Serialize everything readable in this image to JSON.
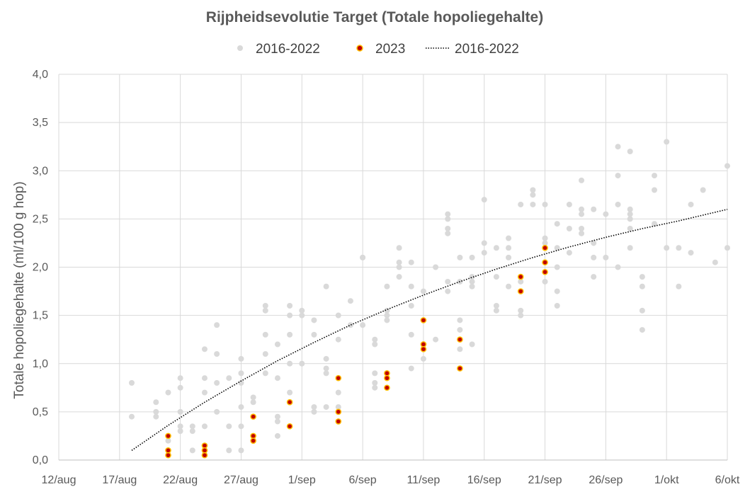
{
  "chart_data": {
    "type": "scatter",
    "title": "Rijpheidsevolutie Target (Totale hopoliegehalte)",
    "xlabel": "",
    "ylabel": "Totale hopoliegehalte (ml/100 g hop)",
    "x_unit": "day of year (Aug/Sep/Oct)",
    "x_tick_labels": [
      "12/aug",
      "17/aug",
      "22/aug",
      "27/aug",
      "1/sep",
      "6/sep",
      "11/sep",
      "16/sep",
      "21/sep",
      "26/sep",
      "1/okt",
      "6/okt"
    ],
    "x_ticks": [
      224,
      229,
      234,
      239,
      244,
      249,
      254,
      259,
      264,
      269,
      274,
      279
    ],
    "xlim": [
      224,
      279
    ],
    "ylim": [
      0,
      4
    ],
    "y_ticks": [
      "0,0",
      "0,5",
      "1,0",
      "1,5",
      "2,0",
      "2,5",
      "3,0",
      "3,5",
      "4,0"
    ],
    "y_tick_values": [
      0,
      0.5,
      1.0,
      1.5,
      2.0,
      2.5,
      3.0,
      3.5,
      4.0
    ],
    "grid": true,
    "legend_position": "top",
    "legend": [
      "2016-2022",
      "2023",
      "2016-2022"
    ],
    "colors": {
      "historic": "#d9d9d9",
      "current_fill": "#c00000",
      "current_edge": "#ffc000",
      "trend": "#000000",
      "grid": "#d9d9d9"
    },
    "series": [
      {
        "name": "2016-2022",
        "kind": "scatter",
        "points": [
          [
            230,
            0.8
          ],
          [
            230,
            0.45
          ],
          [
            232,
            0.6
          ],
          [
            232,
            0.5
          ],
          [
            232,
            0.45
          ],
          [
            233,
            0.7
          ],
          [
            233,
            0.2
          ],
          [
            234,
            0.85
          ],
          [
            234,
            0.75
          ],
          [
            234,
            0.5
          ],
          [
            234,
            0.35
          ],
          [
            234,
            0.3
          ],
          [
            235,
            0.1
          ],
          [
            235,
            0.35
          ],
          [
            235,
            0.3
          ],
          [
            236,
            1.15
          ],
          [
            236,
            0.85
          ],
          [
            236,
            0.7
          ],
          [
            236,
            0.35
          ],
          [
            237,
            1.4
          ],
          [
            237,
            1.1
          ],
          [
            237,
            0.8
          ],
          [
            237,
            0.5
          ],
          [
            238,
            0.85
          ],
          [
            238,
            0.35
          ],
          [
            238,
            0.1
          ],
          [
            239,
            1.05
          ],
          [
            239,
            0.9
          ],
          [
            239,
            0.8
          ],
          [
            239,
            0.55
          ],
          [
            239,
            0.35
          ],
          [
            239,
            0.1
          ],
          [
            240,
            0.65
          ],
          [
            240,
            0.6
          ],
          [
            241,
            1.6
          ],
          [
            241,
            1.55
          ],
          [
            241,
            1.3
          ],
          [
            241,
            1.1
          ],
          [
            241,
            0.9
          ],
          [
            242,
            1.2
          ],
          [
            242,
            0.85
          ],
          [
            242,
            0.45
          ],
          [
            242,
            0.4
          ],
          [
            242,
            0.25
          ],
          [
            243,
            1.6
          ],
          [
            243,
            1.5
          ],
          [
            243,
            1.3
          ],
          [
            243,
            1.0
          ],
          [
            243,
            0.7
          ],
          [
            244,
            1.55
          ],
          [
            244,
            1.5
          ],
          [
            244,
            1.0
          ],
          [
            245,
            1.45
          ],
          [
            245,
            1.3
          ],
          [
            245,
            0.55
          ],
          [
            245,
            0.5
          ],
          [
            246,
            1.8
          ],
          [
            246,
            1.05
          ],
          [
            246,
            0.95
          ],
          [
            246,
            0.9
          ],
          [
            246,
            0.55
          ],
          [
            247,
            1.5
          ],
          [
            247,
            1.25
          ],
          [
            247,
            0.7
          ],
          [
            247,
            0.55
          ],
          [
            248,
            1.65
          ],
          [
            248,
            1.4
          ],
          [
            249,
            2.1
          ],
          [
            249,
            2.1
          ],
          [
            249,
            1.4
          ],
          [
            250,
            1.25
          ],
          [
            250,
            1.2
          ],
          [
            250,
            0.9
          ],
          [
            250,
            0.8
          ],
          [
            250,
            0.75
          ],
          [
            251,
            1.8
          ],
          [
            251,
            1.55
          ],
          [
            251,
            1.5
          ],
          [
            251,
            1.45
          ],
          [
            252,
            2.2
          ],
          [
            252,
            2.05
          ],
          [
            252,
            2.0
          ],
          [
            252,
            1.9
          ],
          [
            253,
            2.05
          ],
          [
            253,
            1.8
          ],
          [
            253,
            1.6
          ],
          [
            253,
            1.3
          ],
          [
            253,
            0.95
          ],
          [
            254,
            1.75
          ],
          [
            254,
            1.05
          ],
          [
            255,
            2.0
          ],
          [
            255,
            1.25
          ],
          [
            256,
            2.55
          ],
          [
            256,
            2.5
          ],
          [
            256,
            2.4
          ],
          [
            256,
            2.35
          ],
          [
            256,
            1.85
          ],
          [
            256,
            1.75
          ],
          [
            257,
            2.1
          ],
          [
            257,
            1.85
          ],
          [
            257,
            1.45
          ],
          [
            257,
            1.35
          ],
          [
            257,
            1.15
          ],
          [
            258,
            2.1
          ],
          [
            258,
            1.9
          ],
          [
            258,
            1.85
          ],
          [
            258,
            1.8
          ],
          [
            258,
            1.2
          ],
          [
            259,
            2.7
          ],
          [
            259,
            2.25
          ],
          [
            259,
            2.15
          ],
          [
            260,
            2.2
          ],
          [
            260,
            1.9
          ],
          [
            260,
            1.6
          ],
          [
            260,
            1.55
          ],
          [
            261,
            2.3
          ],
          [
            261,
            2.2
          ],
          [
            261,
            2.1
          ],
          [
            261,
            1.8
          ],
          [
            262,
            2.65
          ],
          [
            262,
            1.9
          ],
          [
            262,
            1.85
          ],
          [
            262,
            1.55
          ],
          [
            262,
            1.5
          ],
          [
            263,
            2.8
          ],
          [
            263,
            2.75
          ],
          [
            263,
            2.65
          ],
          [
            264,
            2.65
          ],
          [
            264,
            2.3
          ],
          [
            264,
            2.25
          ],
          [
            264,
            1.85
          ],
          [
            265,
            2.45
          ],
          [
            265,
            2.2
          ],
          [
            265,
            2.0
          ],
          [
            265,
            1.75
          ],
          [
            265,
            1.6
          ],
          [
            266,
            2.65
          ],
          [
            266,
            2.4
          ],
          [
            266,
            2.15
          ],
          [
            267,
            2.9
          ],
          [
            267,
            2.6
          ],
          [
            267,
            2.55
          ],
          [
            267,
            2.4
          ],
          [
            267,
            2.35
          ],
          [
            268,
            2.6
          ],
          [
            268,
            2.25
          ],
          [
            268,
            2.1
          ],
          [
            268,
            1.9
          ],
          [
            269,
            2.55
          ],
          [
            269,
            2.1
          ],
          [
            270,
            3.25
          ],
          [
            270,
            2.95
          ],
          [
            270,
            2.65
          ],
          [
            270,
            2.0
          ],
          [
            271,
            3.2
          ],
          [
            271,
            2.6
          ],
          [
            271,
            2.55
          ],
          [
            271,
            2.5
          ],
          [
            271,
            2.4
          ],
          [
            271,
            2.2
          ],
          [
            272,
            1.9
          ],
          [
            272,
            1.8
          ],
          [
            272,
            1.55
          ],
          [
            272,
            1.35
          ],
          [
            273,
            2.95
          ],
          [
            273,
            2.8
          ],
          [
            273,
            2.45
          ],
          [
            274,
            3.3
          ],
          [
            274,
            2.2
          ],
          [
            275,
            2.2
          ],
          [
            275,
            1.8
          ],
          [
            276,
            2.65
          ],
          [
            276,
            2.15
          ],
          [
            277,
            2.8
          ],
          [
            278,
            2.05
          ],
          [
            279,
            3.05
          ],
          [
            279,
            2.2
          ]
        ]
      },
      {
        "name": "2023",
        "kind": "scatter",
        "points": [
          [
            233,
            0.25
          ],
          [
            233,
            0.1
          ],
          [
            233,
            0.05
          ],
          [
            236,
            0.15
          ],
          [
            236,
            0.1
          ],
          [
            236,
            0.05
          ],
          [
            240,
            0.45
          ],
          [
            240,
            0.25
          ],
          [
            240,
            0.2
          ],
          [
            243,
            0.6
          ],
          [
            243,
            0.35
          ],
          [
            247,
            0.85
          ],
          [
            247,
            0.5
          ],
          [
            247,
            0.4
          ],
          [
            251,
            0.9
          ],
          [
            251,
            0.85
          ],
          [
            251,
            0.75
          ],
          [
            254,
            1.45
          ],
          [
            254,
            1.2
          ],
          [
            254,
            1.15
          ],
          [
            257,
            1.25
          ],
          [
            257,
            0.95
          ],
          [
            262,
            1.9
          ],
          [
            262,
            1.75
          ],
          [
            264,
            2.2
          ],
          [
            264,
            2.05
          ],
          [
            264,
            1.95
          ]
        ]
      },
      {
        "name": "2016-2022",
        "kind": "trendline",
        "points": [
          [
            230,
            0.1
          ],
          [
            233,
            0.36
          ],
          [
            236,
            0.6
          ],
          [
            239,
            0.82
          ],
          [
            242,
            1.03
          ],
          [
            245,
            1.22
          ],
          [
            248,
            1.4
          ],
          [
            251,
            1.56
          ],
          [
            254,
            1.71
          ],
          [
            257,
            1.85
          ],
          [
            260,
            1.98
          ],
          [
            263,
            2.1
          ],
          [
            266,
            2.21
          ],
          [
            269,
            2.31
          ],
          [
            272,
            2.4
          ],
          [
            275,
            2.48
          ],
          [
            279,
            2.6
          ]
        ]
      }
    ]
  }
}
